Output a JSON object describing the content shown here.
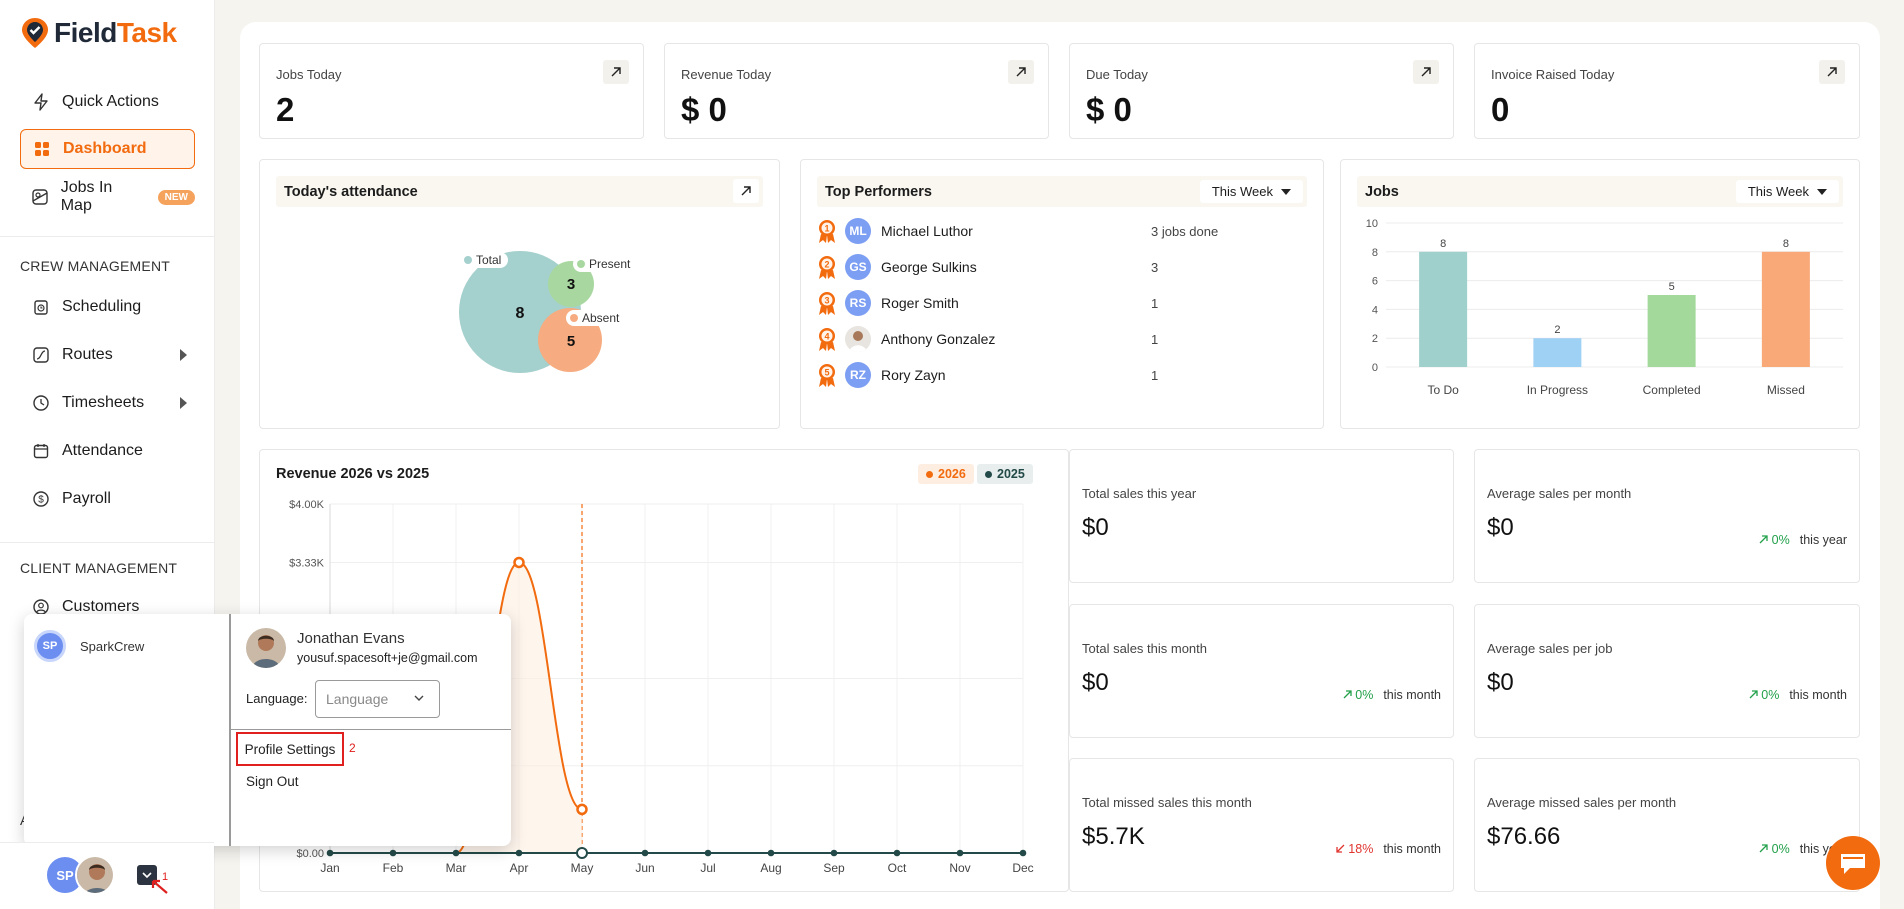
{
  "app": {
    "logo_part1": "Field",
    "logo_part2": "Task"
  },
  "nav": {
    "quick_actions": "Quick Actions",
    "dashboard": "Dashboard",
    "jobs_in_map": "Jobs In Map",
    "new_badge": "NEW",
    "crew_section": "CREW MANAGEMENT",
    "scheduling": "Scheduling",
    "routes": "Routes",
    "timesheets": "Timesheets",
    "attendance": "Attendance",
    "payroll": "Payroll",
    "client_section": "CLIENT MANAGEMENT",
    "customers": "Customers",
    "collapsed_letter": "A"
  },
  "kpis": [
    {
      "label": "Jobs Today",
      "value": "2"
    },
    {
      "label": "Revenue Today",
      "value": "$ 0"
    },
    {
      "label": "Due Today",
      "value": "$ 0"
    },
    {
      "label": "Invoice Raised Today",
      "value": "0"
    }
  ],
  "attendance": {
    "title": "Today's attendance",
    "total_label": "Total",
    "total_value": "8",
    "present_label": "Present",
    "present_value": "3",
    "absent_label": "Absent",
    "absent_value": "5",
    "colors": {
      "total": "#a4d0cd",
      "present": "#a8d8a0",
      "absent": "#f6ac80"
    }
  },
  "performers": {
    "title": "Top Performers",
    "filter": "This Week",
    "rows": [
      {
        "rank": "1",
        "initials": "ML",
        "name": "Michael Luthor",
        "jobs": "3 jobs done"
      },
      {
        "rank": "2",
        "initials": "GS",
        "name": "George Sulkins",
        "jobs": "3"
      },
      {
        "rank": "3",
        "initials": "RS",
        "name": "Roger Smith",
        "jobs": "1"
      },
      {
        "rank": "4",
        "initials": "",
        "name": "Anthony Gonzalez",
        "jobs": "1"
      },
      {
        "rank": "5",
        "initials": "RZ",
        "name": "Rory Zayn",
        "jobs": "1"
      }
    ]
  },
  "jobs_panel": {
    "title": "Jobs",
    "filter": "This Week"
  },
  "revenue_panel": {
    "title": "Revenue 2026 vs 2025",
    "legend_2026": "2026",
    "legend_2025": "2025"
  },
  "stats": [
    {
      "label": "Total sales this year",
      "value": "$0",
      "delta": "",
      "period": ""
    },
    {
      "label": "Average sales per month",
      "value": "$0",
      "delta": "0%",
      "period": "this year",
      "dir": "up"
    },
    {
      "label": "Total sales this month",
      "value": "$0",
      "delta": "0%",
      "period": "this month",
      "dir": "up"
    },
    {
      "label": "Average sales per job",
      "value": "$0",
      "delta": "0%",
      "period": "this month",
      "dir": "up"
    },
    {
      "label": "Total missed sales this month",
      "value": "$5.7K",
      "delta": "18%",
      "period": "this month",
      "dir": "down"
    },
    {
      "label": "Average missed sales per month",
      "value": "$76.66",
      "delta": "0%",
      "period": "this year",
      "dir": "up"
    }
  ],
  "popup": {
    "org_initials": "SP",
    "org_name": "SparkCrew",
    "user_name": "Jonathan Evans",
    "user_email": "yousuf.spacesoft+je@gmail.com",
    "language_label": "Language:",
    "language_placeholder": "Language",
    "profile_settings": "Profile Settings",
    "sign_out": "Sign Out",
    "annotation_2": "2"
  },
  "bottom": {
    "org_initials": "SP",
    "annotation_1": "1"
  },
  "chart_data": [
    {
      "type": "bar",
      "title": "Jobs",
      "categories": [
        "To Do",
        "In Progress",
        "Completed",
        "Missed"
      ],
      "values": [
        8,
        2,
        5,
        8
      ],
      "colors": [
        "#9fd0cb",
        "#9fd1f5",
        "#a3d99a",
        "#f9a877"
      ],
      "ylim": [
        0,
        10
      ],
      "yticks": [
        0,
        2,
        4,
        6,
        8,
        10
      ]
    },
    {
      "type": "line",
      "title": "Revenue 2026 vs 2025",
      "x": [
        "Jan",
        "Feb",
        "Mar",
        "Apr",
        "May",
        "Jun",
        "Jul",
        "Aug",
        "Sep",
        "Oct",
        "Nov",
        "Dec"
      ],
      "yticks": [
        "$0.00",
        "$3.33K",
        "$4.00K"
      ],
      "ylim": [
        0,
        4000
      ],
      "series": [
        {
          "name": "2026",
          "color": "#f26b0f",
          "values": [
            0,
            0,
            0,
            3330,
            500,
            null,
            null,
            null,
            null,
            null,
            null,
            null
          ]
        },
        {
          "name": "2025",
          "color": "#234a48",
          "values": [
            0,
            0,
            0,
            0,
            0,
            0,
            0,
            0,
            0,
            0,
            0,
            0
          ]
        }
      ]
    }
  ]
}
